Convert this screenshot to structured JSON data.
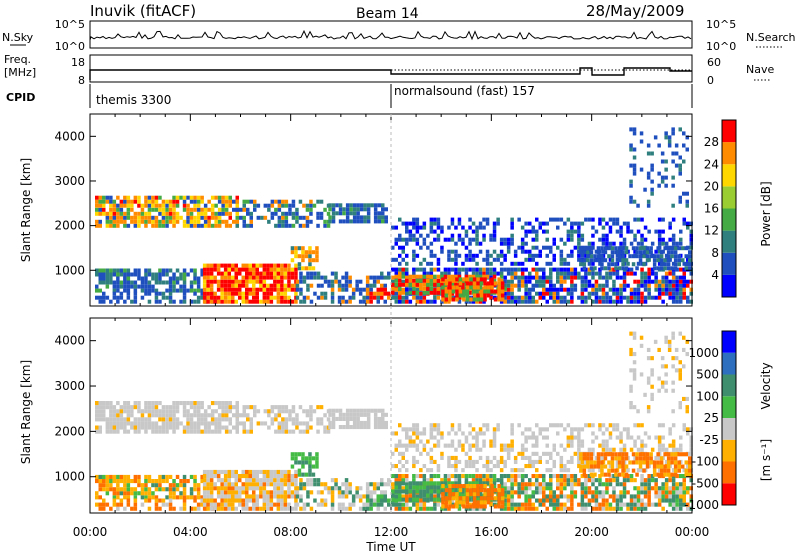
{
  "header": {
    "station": "Inuvik (fitACF)",
    "beam": "Beam 14",
    "date": "28/May/2009"
  },
  "top_panels": {
    "nsky_label": "N.Sky",
    "nsearch_label": "N.Search",
    "nsky_ticks": [
      "10^5",
      "10^0"
    ],
    "nsearch_ticks": [
      "10^5",
      "10^0"
    ],
    "freq_label": "Freq.",
    "freq_unit": "[MHz]",
    "freq_ticks": [
      "18",
      "8"
    ],
    "nave_label": "Nave",
    "nave_ticks": [
      "60",
      "0"
    ],
    "cpid_label": "CPID",
    "cpid_segments": [
      {
        "label": "themis 3300",
        "start": 0,
        "end": 12
      },
      {
        "label": "normalsound (fast) 157",
        "start": 12,
        "end": 24
      }
    ]
  },
  "chart_data": [
    {
      "type": "heatmap",
      "name": "power-panel",
      "ylabel": "Slant Range [km]",
      "yticks": [
        "1000",
        "2000",
        "3000",
        "4000"
      ],
      "ylim": [
        200,
        4500
      ],
      "xlim": [
        0,
        24
      ],
      "colorbar_label": "Power [dB]",
      "colorbar_ticks": [
        "4",
        "8",
        "12",
        "16",
        "20",
        "24",
        "28"
      ],
      "colorbar_range": [
        0,
        32
      ],
      "colors": [
        "#0000ff",
        "#1f4fbf",
        "#2f7f7f",
        "#44aa44",
        "#9acd32",
        "#ffd700",
        "#ff8c00",
        "#ff0000"
      ]
    },
    {
      "type": "heatmap",
      "name": "velocity-panel",
      "ylabel": "Slant Range [km]",
      "yticks": [
        "1000",
        "2000",
        "3000",
        "4000"
      ],
      "ylim": [
        200,
        4500
      ],
      "xlim": [
        0,
        24
      ],
      "colorbar_label": "Velocity",
      "colorbar_unit": "[m s⁻¹]",
      "colorbar_ticks": [
        "1000",
        "500",
        "100",
        "25",
        "-25",
        "-100",
        "-500",
        "-1000"
      ],
      "colors": [
        "#0000ff",
        "#2f6fbf",
        "#3f8f6f",
        "#44bb44",
        "#c8c8c8",
        "#ffb000",
        "#ff7000",
        "#ff0000"
      ]
    }
  ],
  "x_axis": {
    "ticks": [
      "00:00",
      "04:00",
      "08:00",
      "12:00",
      "16:00",
      "20:00",
      "00:00"
    ],
    "label": "Time UT"
  }
}
